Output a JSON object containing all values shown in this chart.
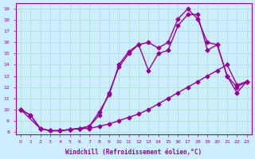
{
  "xlabel": "Windchill (Refroidissement éolien,°C)",
  "bg_color": "#cceeff",
  "grid_color": "#aaddcc",
  "line_color": "#990099",
  "xlim": [
    -0.5,
    23.5
  ],
  "ylim": [
    7.8,
    19.5
  ],
  "xticks": [
    0,
    1,
    2,
    3,
    4,
    5,
    6,
    7,
    8,
    9,
    10,
    11,
    12,
    13,
    14,
    15,
    16,
    17,
    18,
    19,
    20,
    21,
    22,
    23
  ],
  "yticks": [
    8,
    9,
    10,
    11,
    12,
    13,
    14,
    15,
    16,
    17,
    18,
    19
  ],
  "line1_x": [
    0,
    1,
    2,
    3,
    4,
    5,
    6,
    7,
    8,
    9,
    10,
    11,
    12,
    13,
    14,
    15,
    16,
    17,
    18,
    19,
    20,
    21,
    22,
    23
  ],
  "line1_y": [
    10.0,
    9.5,
    8.3,
    8.1,
    8.1,
    8.2,
    8.3,
    8.3,
    8.5,
    8.7,
    9.0,
    9.3,
    9.6,
    10.0,
    10.5,
    11.0,
    11.5,
    12.0,
    12.5,
    13.0,
    13.5,
    14.0,
    12.2,
    12.5
  ],
  "line2_x": [
    0,
    1,
    2,
    3,
    4,
    5,
    6,
    7,
    8,
    9,
    10,
    11,
    12,
    13,
    14,
    15,
    16,
    17,
    18,
    19,
    20,
    21,
    22,
    23
  ],
  "line2_y": [
    10.0,
    9.5,
    8.3,
    8.1,
    8.1,
    8.2,
    8.3,
    8.5,
    9.5,
    11.5,
    13.8,
    15.0,
    15.8,
    16.0,
    15.5,
    16.0,
    18.1,
    19.0,
    18.1,
    16.0,
    15.8,
    13.0,
    12.0,
    12.5
  ],
  "line3_x": [
    0,
    2,
    3,
    4,
    5,
    6,
    7,
    8,
    9,
    10,
    11,
    12,
    13,
    14,
    15,
    16,
    17,
    18,
    19,
    20,
    21,
    22,
    23
  ],
  "line3_y": [
    10.0,
    8.3,
    8.1,
    8.1,
    8.2,
    8.3,
    8.5,
    9.8,
    11.3,
    14.0,
    15.2,
    15.8,
    13.5,
    15.0,
    15.3,
    17.5,
    18.5,
    18.5,
    15.3,
    15.8,
    13.0,
    11.5,
    12.5
  ],
  "marker": "D",
  "markersize": 2.5,
  "linewidth": 1.0
}
